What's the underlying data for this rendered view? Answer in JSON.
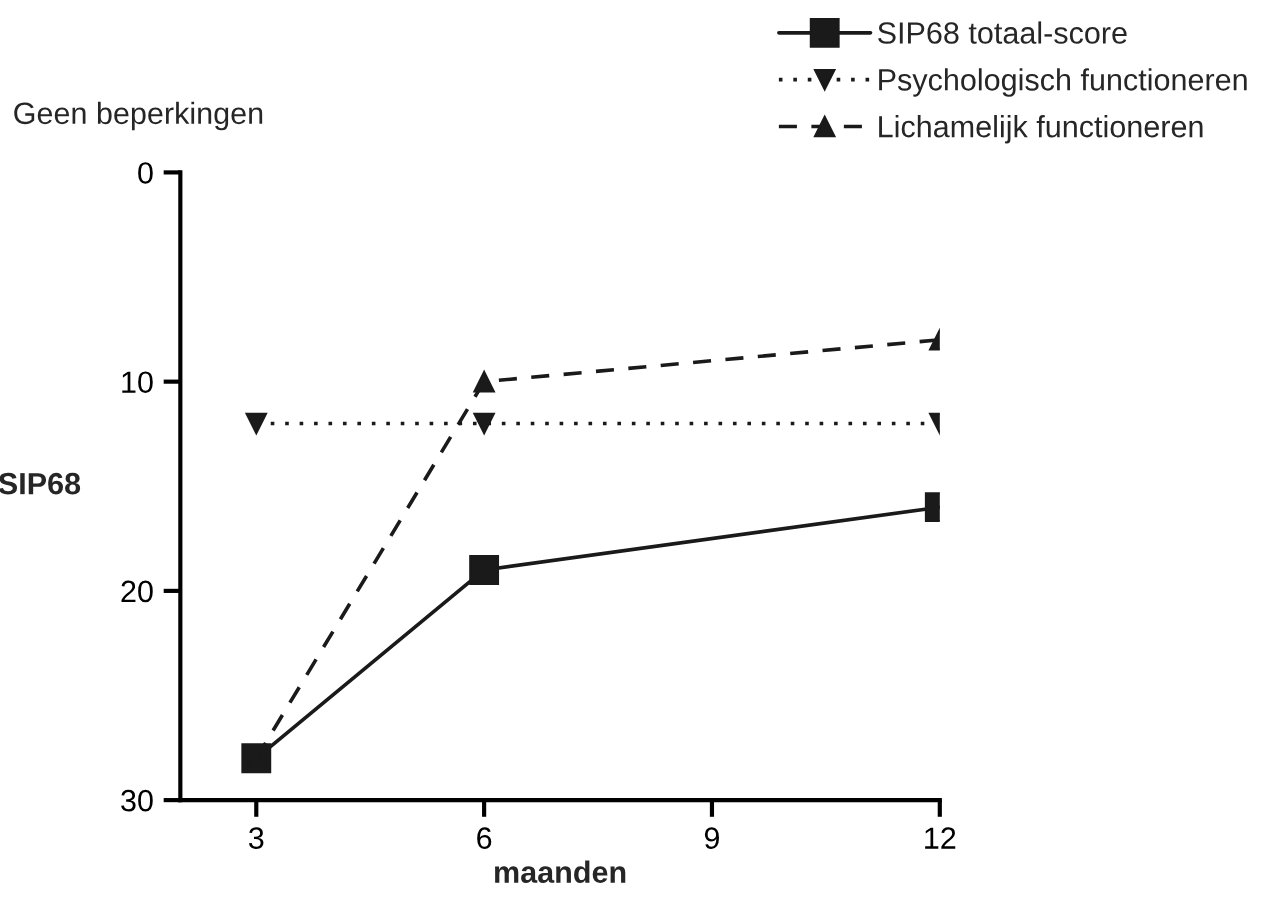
{
  "chart_data": {
    "type": "line",
    "xlabel": "maanden",
    "ylabel": "SIP68",
    "annotations": [
      "Geen beperkingen"
    ],
    "x": [
      3,
      6,
      12
    ],
    "series": [
      {
        "name": "SIP68 totaal-score",
        "color": "#1a1a1a",
        "values": [
          28,
          19,
          16
        ],
        "marker": "square",
        "line_style": "solid"
      },
      {
        "name": "Psychologisch functioneren",
        "color": "#1a1a1a",
        "values": [
          12,
          12,
          12
        ],
        "marker": "triangle_down",
        "line_style": "dotted"
      },
      {
        "name": "Lichamelijk functioneren",
        "color": "#1a1a1a",
        "values": [
          28,
          10,
          8
        ],
        "marker": "triangle",
        "line_style": "dashed"
      }
    ],
    "xlim": [
      2,
      12
    ],
    "xticks": [
      3,
      6,
      9,
      12
    ],
    "ylim": [
      30,
      0
    ],
    "yticks": [
      0,
      10,
      20,
      30
    ],
    "grid": false,
    "legend": "top right"
  }
}
